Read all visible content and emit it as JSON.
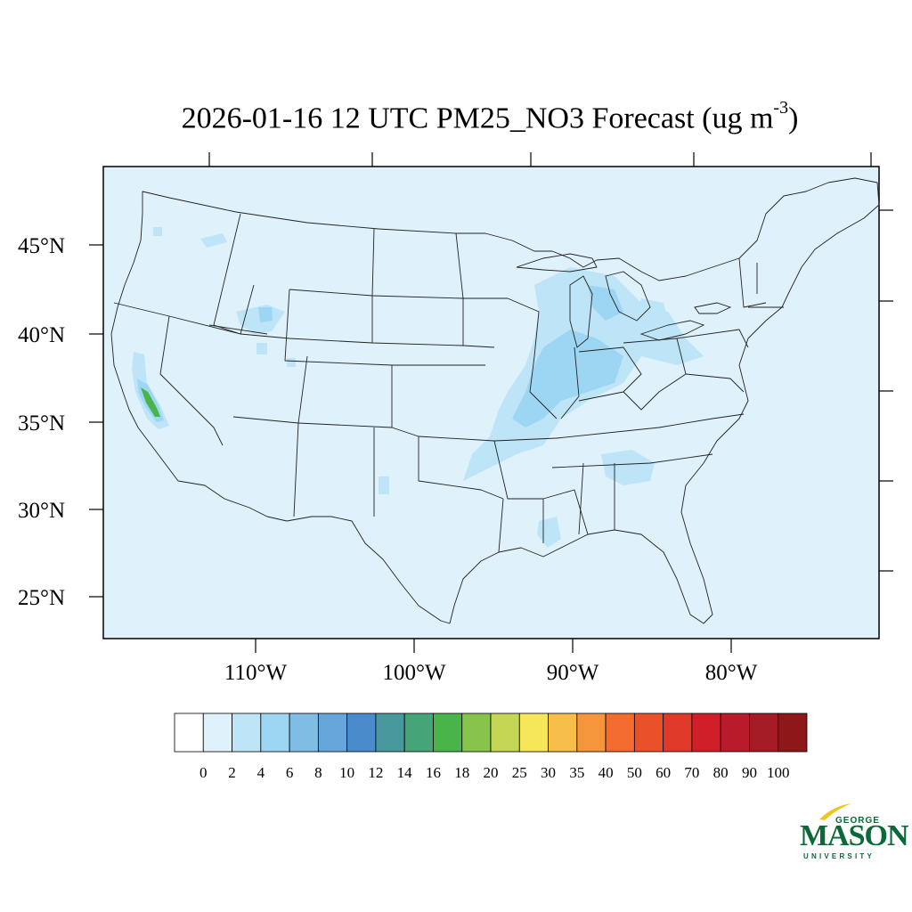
{
  "title": {
    "text": "2026-01-16 12 UTC PM25_NO3 Forecast (ug m",
    "superscript": "-3",
    "close": ")"
  },
  "map": {
    "background_color": "#dff1fb",
    "lat_labels": [
      "45°N",
      "40°N",
      "35°N",
      "30°N",
      "25°N"
    ],
    "lon_labels": [
      "110°W",
      "100°W",
      "90°W",
      "80°W"
    ]
  },
  "colorbar": {
    "labels": [
      "0",
      "2",
      "4",
      "6",
      "8",
      "10",
      "12",
      "14",
      "16",
      "18",
      "20",
      "25",
      "30",
      "35",
      "40",
      "50",
      "60",
      "70",
      "80",
      "90",
      "100"
    ],
    "colors": [
      "#ffffff",
      "#dff1fb",
      "#bde5f7",
      "#9dd6f3",
      "#80bde5",
      "#66a6db",
      "#4a8bcb",
      "#47999d",
      "#46a578",
      "#48b44a",
      "#86c44c",
      "#c4d653",
      "#f6e65a",
      "#f7be4a",
      "#f6963c",
      "#f36b2e",
      "#ea512b",
      "#e0392a",
      "#d11f2a",
      "#b91b2a",
      "#a41a25",
      "#8e1719"
    ]
  },
  "plumes": {
    "light_color": "#bde5f7",
    "mid_color": "#9dd6f3",
    "green_color": "#48b44a"
  },
  "logo": {
    "line1": "GEORGE",
    "line2": "MASON",
    "line3": "UNIVERSITY",
    "color": "#0a6a37",
    "accent_color": "#f1c31c"
  }
}
